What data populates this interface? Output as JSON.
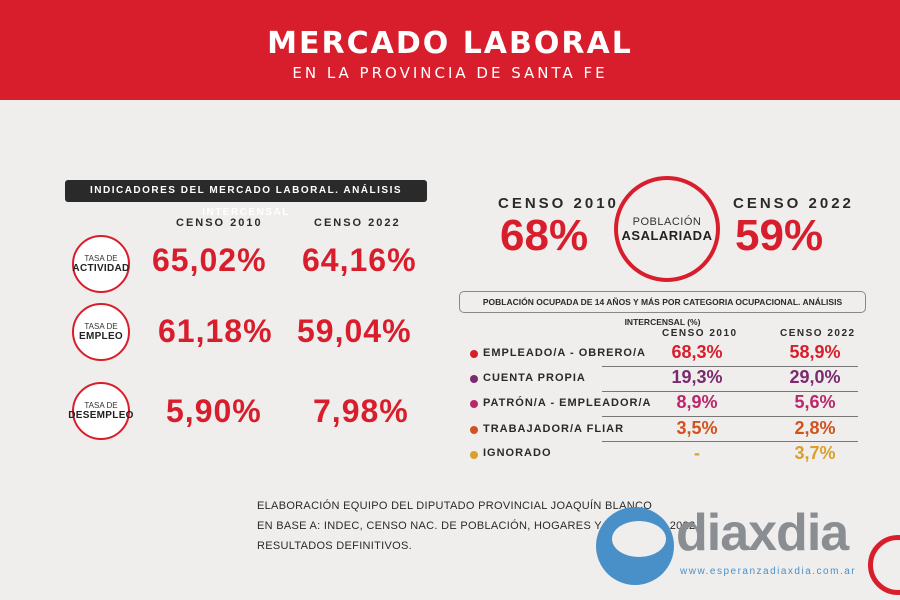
{
  "header": {
    "title": "MERCADO LABORAL",
    "subtitle": "EN LA PROVINCIA DE SANTA FE"
  },
  "indicators": {
    "section_title": "INDICADORES DEL MERCADO LABORAL. ANÁLISIS INTERCENSAL",
    "col_2010": "CENSO 2010",
    "col_2022": "CENSO 2022",
    "rows": [
      {
        "small": "TASA DE",
        "big": "ACTIVIDAD",
        "v2010": "65,02%",
        "v2022": "64,16%"
      },
      {
        "small": "TASA DE",
        "big": "EMPLEO",
        "v2010": "61,18%",
        "v2022": "59,04%"
      },
      {
        "small": "TASA DE",
        "big": "DESEMPLEO",
        "v2010": "5,90%",
        "v2022": "7,98%"
      }
    ]
  },
  "asalariada": {
    "label_2010": "CENSO 2010",
    "value_2010": "68%",
    "label_2022": "CENSO 2022",
    "value_2022": "59%",
    "circle_line1": "POBLACIÓN",
    "circle_line2": "ASALARIADA"
  },
  "occupational": {
    "title": "POBLACIÓN OCUPADA DE 14 AÑOS Y MÁS POR CATEGORIA OCUPACIONAL. ANÁLISIS INTERCENSAL (%)",
    "col_2010": "CENSO 2010",
    "col_2022": "CENSO 2022",
    "rows": [
      {
        "label": "EMPLEADO/A - OBRERO/A",
        "v2010": "68,3%",
        "v2022": "58,9%",
        "color": "#d81e2c"
      },
      {
        "label": "CUENTA PROPIA",
        "v2010": "19,3%",
        "v2022": "29,0%",
        "color": "#7b2a6e"
      },
      {
        "label": "PATRÓN/A - EMPLEADOR/A",
        "v2010": "8,9%",
        "v2022": "5,6%",
        "color": "#b8286a"
      },
      {
        "label": "TRABAJADOR/A FLIAR",
        "v2010": "3,5%",
        "v2022": "2,8%",
        "color": "#d2521f"
      },
      {
        "label": "IGNORADO",
        "v2010": "-",
        "v2022": "3,7%",
        "color": "#d9a02a"
      }
    ]
  },
  "footer": {
    "line1": "ELABORACIÓN EQUIPO DEL DIPUTADO PROVINCIAL JOAQUÍN BLANCO",
    "line2": "EN BASE A: INDEC, CENSO NAC. DE POBLACIÓN, HOGARES Y VIVIENDAS 2022",
    "line3": "RESULTADOS DEFINITIVOS."
  },
  "logo": {
    "name": "diaxdia",
    "url": "www.esperanzadiaxdia.com.ar"
  },
  "chart_data": [
    {
      "type": "table",
      "title": "INDICADORES DEL MERCADO LABORAL. ANÁLISIS INTERCENSAL",
      "columns": [
        "CENSO 2010",
        "CENSO 2022"
      ],
      "rows": [
        {
          "name": "TASA DE ACTIVIDAD",
          "values": [
            65.02,
            64.16
          ]
        },
        {
          "name": "TASA DE EMPLEO",
          "values": [
            61.18,
            59.04
          ]
        },
        {
          "name": "TASA DE DESEMPLEO",
          "values": [
            5.9,
            7.98
          ]
        }
      ]
    },
    {
      "type": "table",
      "title": "POBLACIÓN ASALARIADA",
      "columns": [
        "CENSO 2010",
        "CENSO 2022"
      ],
      "rows": [
        {
          "name": "POBLACIÓN ASALARIADA",
          "values": [
            68,
            59
          ]
        }
      ]
    },
    {
      "type": "table",
      "title": "POBLACIÓN OCUPADA DE 14 AÑOS Y MÁS POR CATEGORIA OCUPACIONAL. ANÁLISIS INTERCENSAL (%)",
      "columns": [
        "CENSO 2010",
        "CENSO 2022"
      ],
      "rows": [
        {
          "name": "EMPLEADO/A - OBRERO/A",
          "values": [
            68.3,
            58.9
          ]
        },
        {
          "name": "CUENTA PROPIA",
          "values": [
            19.3,
            29.0
          ]
        },
        {
          "name": "PATRÓN/A - EMPLEADOR/A",
          "values": [
            8.9,
            5.6
          ]
        },
        {
          "name": "TRABAJADOR/A FLIAR",
          "values": [
            3.5,
            2.8
          ]
        },
        {
          "name": "IGNORADO",
          "values": [
            null,
            3.7
          ]
        }
      ]
    }
  ]
}
